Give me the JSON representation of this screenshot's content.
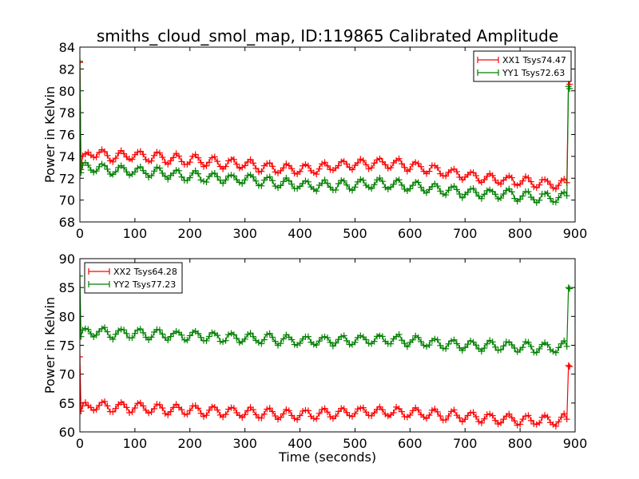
{
  "title": "smiths_cloud_smol_map, ID:119865 Calibrated Amplitude",
  "colors": {
    "xx": "#ff0000",
    "yy": "#008000"
  },
  "chart_data": [
    {
      "type": "line",
      "title": "smiths_cloud_smol_map, ID:119865 Calibrated Amplitude",
      "xlabel": "",
      "ylabel": "Power in Kelvin",
      "xlim": [
        0,
        900
      ],
      "ylim": [
        68,
        84
      ],
      "xticks": [
        "0",
        "100",
        "200",
        "300",
        "400",
        "500",
        "600",
        "700",
        "800",
        "900"
      ],
      "yticks": [
        "68",
        "70",
        "72",
        "74",
        "76",
        "78",
        "80",
        "82",
        "84"
      ],
      "grid": false,
      "legend_position": "top-right",
      "marker": "+",
      "series": [
        {
          "name": "XX1 Tsys74.47",
          "color": "#ff0000",
          "x": [
            0,
            2,
            5,
            20,
            60,
            100,
            140,
            180,
            220,
            260,
            300,
            340,
            380,
            420,
            460,
            500,
            540,
            580,
            620,
            660,
            700,
            740,
            780,
            820,
            860,
            885,
            888,
            890
          ],
          "y": [
            82.6,
            72.8,
            73.6,
            74.4,
            74.0,
            74.1,
            73.9,
            73.7,
            73.6,
            73.4,
            73.3,
            73.0,
            72.8,
            72.8,
            73.1,
            73.3,
            73.4,
            73.3,
            73.0,
            72.6,
            72.3,
            72.0,
            71.8,
            71.6,
            71.5,
            71.6,
            81.0,
            80.6
          ]
        },
        {
          "name": "YY1 Tsys72.63",
          "color": "#008000",
          "x": [
            0,
            2,
            5,
            20,
            60,
            100,
            140,
            180,
            220,
            260,
            300,
            340,
            380,
            420,
            460,
            500,
            540,
            580,
            620,
            660,
            700,
            740,
            780,
            820,
            860,
            885,
            888,
            890
          ],
          "y": [
            82.7,
            72.5,
            72.9,
            73.1,
            72.7,
            72.7,
            72.5,
            72.3,
            72.1,
            72.0,
            71.9,
            71.7,
            71.5,
            71.3,
            71.3,
            71.4,
            71.5,
            71.4,
            71.2,
            70.9,
            70.7,
            70.6,
            70.5,
            70.3,
            70.2,
            70.4,
            80.4,
            80.2
          ]
        }
      ]
    },
    {
      "type": "line",
      "title": "",
      "xlabel": "Time (seconds)",
      "ylabel": "Power in Kelvin",
      "xlim": [
        0,
        900
      ],
      "ylim": [
        60,
        90
      ],
      "xticks": [
        "0",
        "100",
        "200",
        "300",
        "400",
        "500",
        "600",
        "700",
        "800",
        "900"
      ],
      "yticks": [
        "60",
        "65",
        "70",
        "75",
        "80",
        "85",
        "90"
      ],
      "grid": false,
      "legend_position": "top-left",
      "marker": "+",
      "series": [
        {
          "name": "XX2 Tsys64.28",
          "color": "#ff0000",
          "x": [
            0,
            2,
            5,
            20,
            60,
            100,
            140,
            180,
            220,
            260,
            300,
            340,
            380,
            420,
            460,
            500,
            540,
            580,
            620,
            660,
            700,
            740,
            780,
            820,
            860,
            885,
            888,
            890
          ],
          "y": [
            73.0,
            63.6,
            64.0,
            64.6,
            64.3,
            64.3,
            64.0,
            63.8,
            63.7,
            63.5,
            63.4,
            63.2,
            63.0,
            63.0,
            63.2,
            63.4,
            63.5,
            63.4,
            63.2,
            62.9,
            62.7,
            62.4,
            62.2,
            62.0,
            61.9,
            62.2,
            71.5,
            71.3
          ]
        },
        {
          "name": "YY2 Tsys77.23",
          "color": "#008000",
          "x": [
            0,
            2,
            5,
            20,
            60,
            100,
            140,
            180,
            220,
            260,
            300,
            340,
            380,
            420,
            460,
            500,
            540,
            580,
            620,
            660,
            700,
            740,
            780,
            820,
            860,
            885,
            888,
            890
          ],
          "y": [
            87.0,
            76.5,
            77.0,
            77.5,
            77.0,
            77.1,
            76.9,
            76.7,
            76.6,
            76.4,
            76.3,
            76.1,
            75.9,
            75.8,
            75.8,
            75.9,
            76.0,
            75.9,
            75.6,
            75.3,
            75.1,
            74.9,
            74.8,
            74.6,
            74.5,
            74.8,
            85.0,
            84.8
          ]
        }
      ]
    }
  ]
}
